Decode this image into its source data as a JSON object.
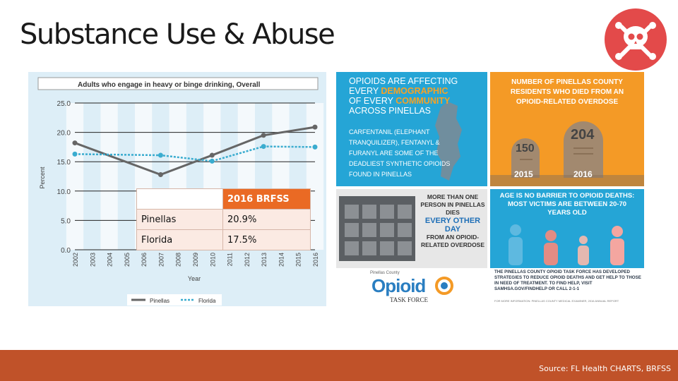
{
  "slide": {
    "title": "Substance Use & Abuse",
    "source": "Source: FL Health CHARTS, BRFSS"
  },
  "badge_icon": "skull-crossbones-icon",
  "colors": {
    "accent_orange": "#c05229",
    "badge_red": "#e34a4a",
    "pinellas": "#666666",
    "florida": "#3aaccf"
  },
  "chart_data": {
    "type": "line",
    "title": "Adults who engage in heavy or binge drinking, Overall",
    "xlabel": "Year",
    "ylabel": "Percent",
    "x": [
      "2002",
      "2003",
      "2004",
      "2005",
      "2006",
      "2007",
      "2008",
      "2009",
      "2010",
      "2011",
      "2012",
      "2013",
      "2014",
      "2015",
      "2016"
    ],
    "ylim": [
      0,
      25
    ],
    "yticks": [
      "0.0",
      "5.0",
      "10.0",
      "15.0",
      "20.0",
      "25.0"
    ],
    "grid": true,
    "legend_position": "bottom",
    "series": [
      {
        "name": "Pinellas",
        "points": [
          [
            0,
            18.2
          ],
          [
            5,
            12.8
          ],
          [
            8,
            16.1
          ],
          [
            11,
            19.5
          ],
          [
            14,
            20.9
          ]
        ]
      },
      {
        "name": "Florida",
        "points": [
          [
            0,
            16.3
          ],
          [
            5,
            16.1
          ],
          [
            8,
            15.1
          ],
          [
            11,
            17.6
          ],
          [
            14,
            17.5
          ]
        ]
      }
    ]
  },
  "brfss_table": {
    "header": [
      "",
      "2016 BRFSS"
    ],
    "rows": [
      [
        "Pinellas",
        "20.9%"
      ],
      [
        "Florida",
        "17.5%"
      ]
    ]
  },
  "infographic": {
    "tile1": {
      "head_1": "OPIOIDS ARE AFFECTING",
      "head_2a": "EVERY ",
      "head_2b": "DEMOGRAPHIC",
      "head_3a": "OF EVERY ",
      "head_3b": "COMMUNITY",
      "head_4": "ACROSS PINELLAS",
      "sub": "CARFENTANIL (ELEPHANT TRANQUILIZER), FENTANYL & FURANYL ARE SOME OF THE DEADLIEST SYNTHETIC OPIOIDS FOUND IN PINELLAS"
    },
    "tile2": {
      "head": "NUMBER OF PINELLAS COUNTY RESIDENTS WHO DIED FROM AN OPIOID-RELATED OVERDOSE",
      "value_2015": "150",
      "value_2016": "204",
      "year_2015": "2015",
      "year_2016": "2016"
    },
    "tile3": {
      "line1": "MORE THAN ONE PERSON IN PINELLAS DIES",
      "highlight": "EVERY OTHER DAY",
      "line2": "FROM AN OPIOID-RELATED OVERDOSE"
    },
    "tile4": {
      "head": "AGE IS NO BARRIER TO OPIOID DEATHS: MOST VICTIMS ARE BETWEEN 20-70 YEARS OLD"
    },
    "footer": {
      "county": "Pinellas County",
      "logo_word": "Opioid",
      "task_force": "TASK FORCE",
      "text": "THE PINELLAS COUNTY OPIOID TASK FORCE HAS DEVELOPED STRATEGIES TO REDUCE OPIOID DEATHS AND GET HELP TO THOSE IN NEED OF TREATMENT. TO FIND HELP, VISIT SAMHSA.GOV/FINDHELP OR CALL 2-1-1",
      "fine": "FOR MORE INFORMATION: PINELLAS COUNTY MEDICAL EXAMINER, 2016 ANNUAL REPORT"
    }
  }
}
